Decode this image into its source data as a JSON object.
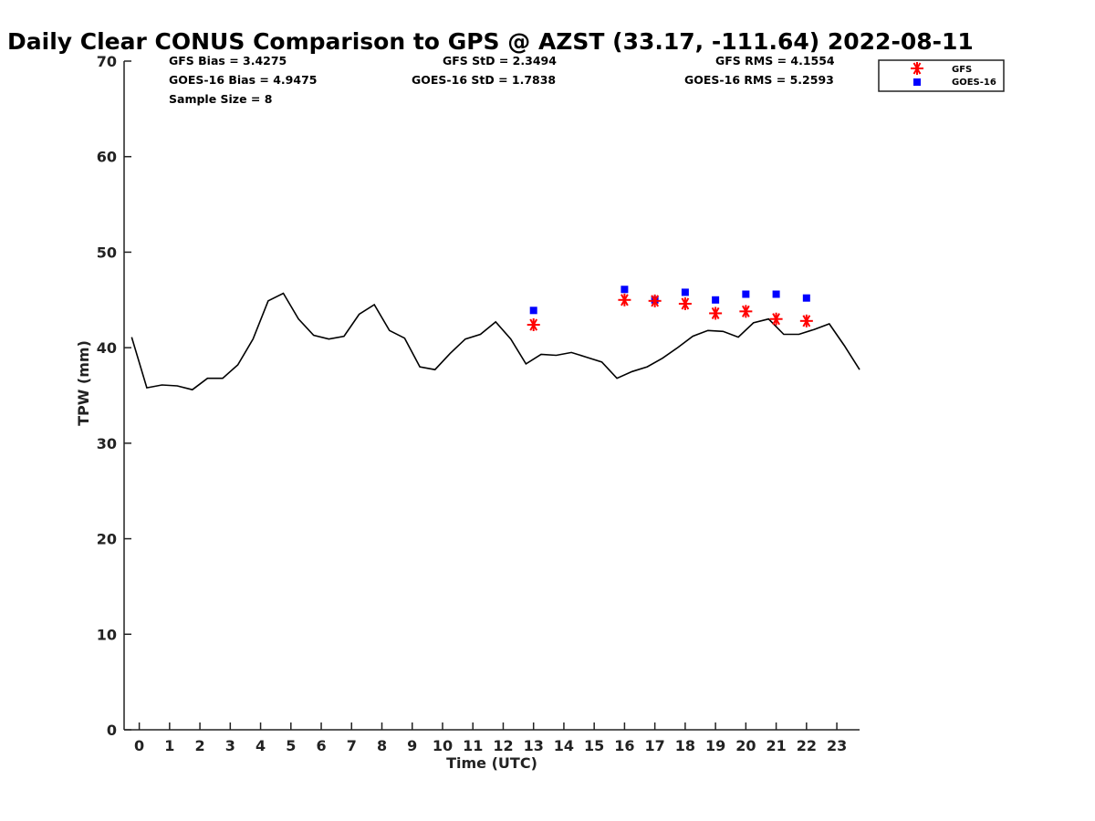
{
  "title": "Daily Clear CONUS Comparison to GPS @ AZST (33.17, -111.64) 2022-08-11",
  "stats": {
    "gfs_bias": "GFS Bias = 3.4275",
    "gfs_std": "GFS StD = 2.3494",
    "gfs_rms": "GFS RMS = 4.1554",
    "goes_bias": "GOES-16 Bias = 4.9475",
    "goes_std": "GOES-16 StD = 1.7838",
    "goes_rms": "GOES-16 RMS = 5.2593",
    "sample_size": "Sample Size = 8"
  },
  "chart_data": {
    "type": "line",
    "xlabel": "Time (UTC)",
    "ylabel": "TPW (mm)",
    "xlim": [
      -0.5,
      23.75
    ],
    "ylim": [
      0,
      70
    ],
    "xticks": [
      0,
      1,
      2,
      3,
      4,
      5,
      6,
      7,
      8,
      9,
      10,
      11,
      12,
      13,
      14,
      15,
      16,
      17,
      18,
      19,
      20,
      21,
      22,
      23
    ],
    "yticks": [
      0,
      10,
      20,
      30,
      40,
      50,
      60,
      70
    ],
    "grid": false,
    "legend_position": "top-right",
    "gps": {
      "x": [
        -0.25,
        0.25,
        0.75,
        1.25,
        1.75,
        2.25,
        2.75,
        3.25,
        3.75,
        4.25,
        4.75,
        5.25,
        5.75,
        6.25,
        6.75,
        7.25,
        7.75,
        8.25,
        8.75,
        9.25,
        9.75,
        10.25,
        10.75,
        11.25,
        11.75,
        12.25,
        12.75,
        13.25,
        13.75,
        14.25,
        14.75,
        15.25,
        15.75,
        16.25,
        16.75,
        17.25,
        17.75,
        18.25,
        18.75,
        19.25,
        19.75,
        20.25,
        20.75,
        21.25,
        21.75,
        22.25,
        22.75,
        23.25,
        23.75
      ],
      "y": [
        41.1,
        35.8,
        36.1,
        36.0,
        35.6,
        36.8,
        36.8,
        38.2,
        40.9,
        44.9,
        45.7,
        43.0,
        41.3,
        40.9,
        41.2,
        43.5,
        44.5,
        41.8,
        41.0,
        38.0,
        37.7,
        39.4,
        40.9,
        41.4,
        42.7,
        40.9,
        38.3,
        39.3,
        39.2,
        39.5,
        39.0,
        38.5,
        36.8,
        37.5,
        38.0,
        38.9,
        40.0,
        41.2,
        41.8,
        41.7,
        41.1,
        42.6,
        43.0,
        41.4,
        41.4,
        41.9,
        42.5,
        40.2,
        37.7
      ]
    },
    "series": [
      {
        "name": "GFS",
        "color": "#ff0000",
        "marker": "asterisk",
        "x": [
          13,
          16,
          17,
          18,
          19,
          20,
          21,
          22
        ],
        "y": [
          42.4,
          45.0,
          44.9,
          44.6,
          43.6,
          43.8,
          43.0,
          42.8
        ]
      },
      {
        "name": "GOES-16",
        "color": "#0000ff",
        "marker": "square",
        "x": [
          13,
          16,
          17,
          18,
          19,
          20,
          21,
          22
        ],
        "y": [
          43.9,
          46.1,
          45.0,
          45.8,
          45.0,
          45.6,
          45.6,
          45.2
        ]
      }
    ]
  }
}
